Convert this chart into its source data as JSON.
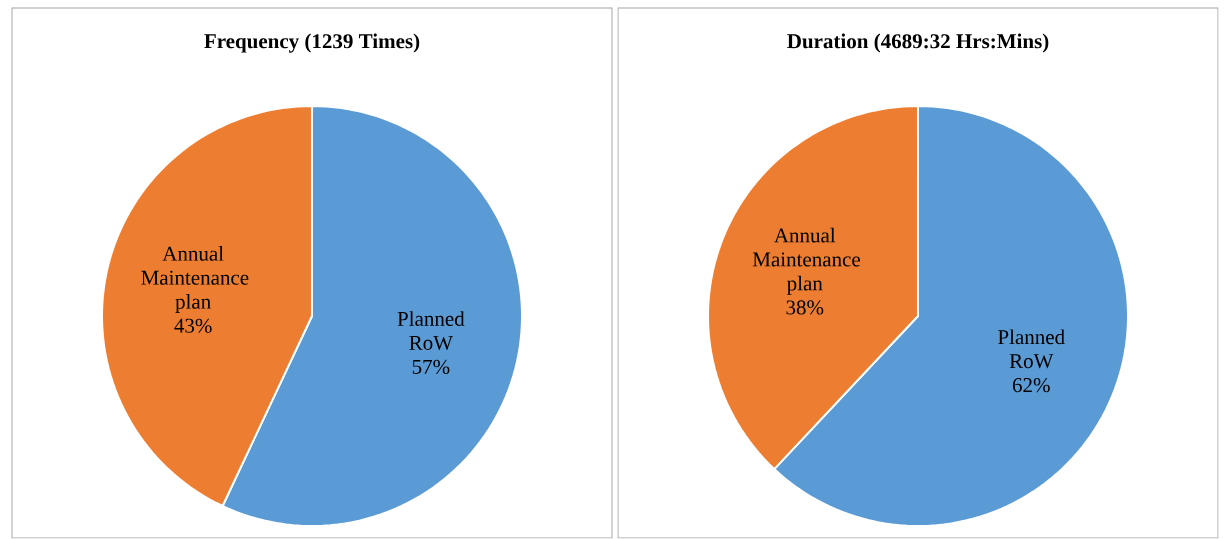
{
  "chart_data": [
    {
      "type": "pie",
      "title": "Frequency (1239 Times)",
      "categories": [
        "Planned RoW",
        "Annual Maintenance plan"
      ],
      "values": [
        57,
        43
      ],
      "value_labels": [
        "57%",
        "43%"
      ],
      "colors": [
        "#5b9bd5",
        "#ed7d31"
      ]
    },
    {
      "type": "pie",
      "title": "Duration (4689:32 Hrs:Mins)",
      "categories": [
        "Planned RoW",
        "Annual Maintenance plan"
      ],
      "values": [
        62,
        38
      ],
      "value_labels": [
        "62%",
        "38%"
      ],
      "colors": [
        "#5b9bd5",
        "#ed7d31"
      ]
    }
  ]
}
